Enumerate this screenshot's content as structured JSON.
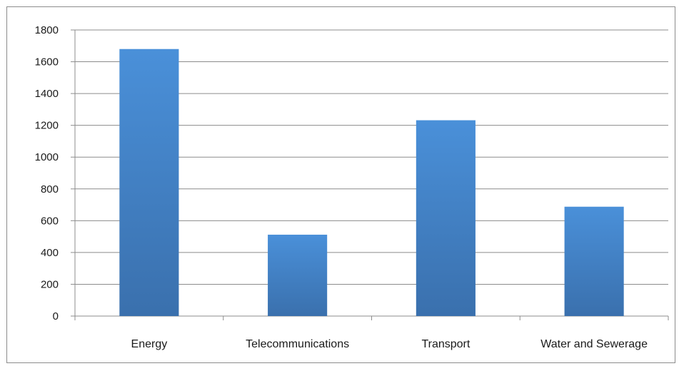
{
  "chart_data": {
    "type": "bar",
    "categories": [
      "Energy",
      "Telecommunications",
      "Transport",
      "Water and Sewerage"
    ],
    "values": [
      1680,
      512,
      1232,
      688
    ],
    "title": "",
    "xlabel": "",
    "ylabel": "",
    "ylim": [
      0,
      1800
    ],
    "yticks": [
      "0",
      "200",
      "400",
      "600",
      "800",
      "1000",
      "1200",
      "1400",
      "1600",
      "1800"
    ],
    "grid": true,
    "legend": "none",
    "colors": {
      "bar_top": "#4a90d9",
      "bar_bottom": "#3a70ad",
      "grid": "#8c8c8c",
      "axis": "#8c8c8c"
    }
  }
}
